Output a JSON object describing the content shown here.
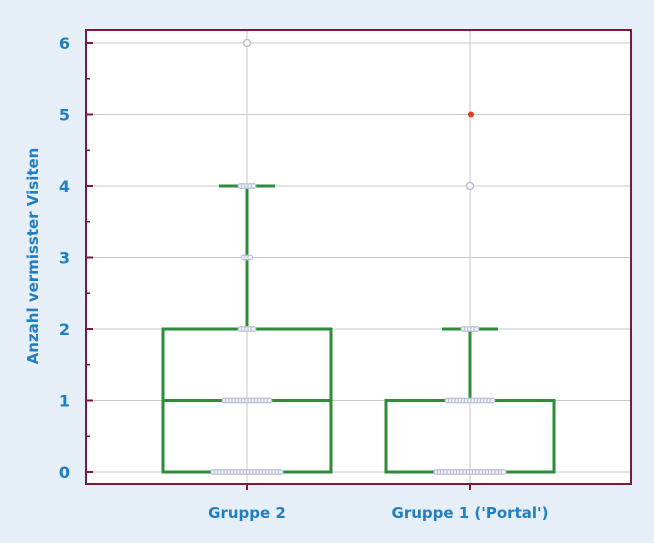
{
  "chart_data": {
    "type": "box",
    "ylabel": "Anzahl vermisster Visiten",
    "ylim": [
      0,
      6
    ],
    "yticks": [
      "0",
      "1",
      "2",
      "3",
      "4",
      "5",
      "6"
    ],
    "categories": [
      "Gruppe 2",
      "Gruppe 1 ('Portal')"
    ],
    "grid": true,
    "boxes": [
      {
        "name": "Gruppe 2",
        "min": 0,
        "q1": 0,
        "median": 1,
        "q3": 2,
        "whisker_high": 4,
        "points": [
          0,
          1,
          2,
          3,
          4,
          6
        ],
        "outliers": [
          6
        ]
      },
      {
        "name": "Gruppe 1 ('Portal')",
        "min": 0,
        "q1": 0,
        "median": 1,
        "q3": 1,
        "whisker_high": 2,
        "points": [
          0,
          1,
          2,
          4,
          5
        ],
        "outliers": [
          4,
          5
        ]
      }
    ],
    "colors": {
      "box": "#2e8b3a",
      "frame": "#7a1a35",
      "grid": "#c8c8c8",
      "text": "#1e7fc4",
      "point": "#b8bcd8",
      "outlier_highlight": "#e04020"
    }
  }
}
